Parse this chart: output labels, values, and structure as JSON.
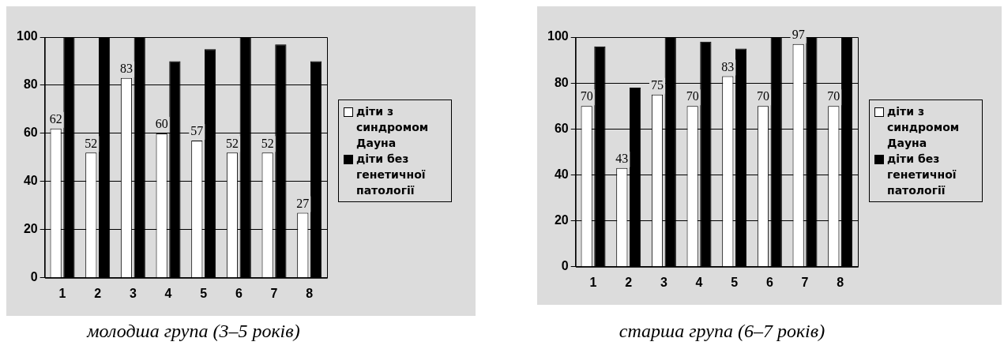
{
  "chart_data": [
    {
      "type": "bar",
      "categories": [
        "1",
        "2",
        "3",
        "4",
        "5",
        "6",
        "7",
        "8"
      ],
      "series": [
        {
          "name": "діти з синдромом Дауна",
          "color": "#ffffff",
          "values": [
            62,
            52,
            83,
            60,
            57,
            52,
            52,
            27
          ],
          "data_labels": true
        },
        {
          "name": "діти без генетичної патології",
          "color": "#000000",
          "values": [
            100,
            100,
            100,
            90,
            95,
            100,
            97,
            90
          ]
        }
      ],
      "ylim": [
        0,
        100
      ],
      "yticks": [
        0,
        20,
        40,
        60,
        80,
        100
      ],
      "grid": "y",
      "legend": "right",
      "annotations": [
        "молодша група (3–5 років)"
      ]
    },
    {
      "type": "bar",
      "categories": [
        "1",
        "2",
        "3",
        "4",
        "5",
        "6",
        "7",
        "8"
      ],
      "series": [
        {
          "name": "діти з синдромом Дауна",
          "color": "#ffffff",
          "values": [
            70,
            43,
            75,
            70,
            83,
            70,
            97,
            70
          ],
          "data_labels": true
        },
        {
          "name": "діти без генетичної патології",
          "color": "#000000",
          "values": [
            96,
            78,
            100,
            98,
            95,
            100,
            100,
            100
          ]
        }
      ],
      "ylim": [
        0,
        100
      ],
      "yticks": [
        0,
        20,
        40,
        60,
        80,
        100
      ],
      "grid": "y",
      "legend": "right",
      "annotations": [
        "старша група (6–7 років)"
      ]
    }
  ]
}
